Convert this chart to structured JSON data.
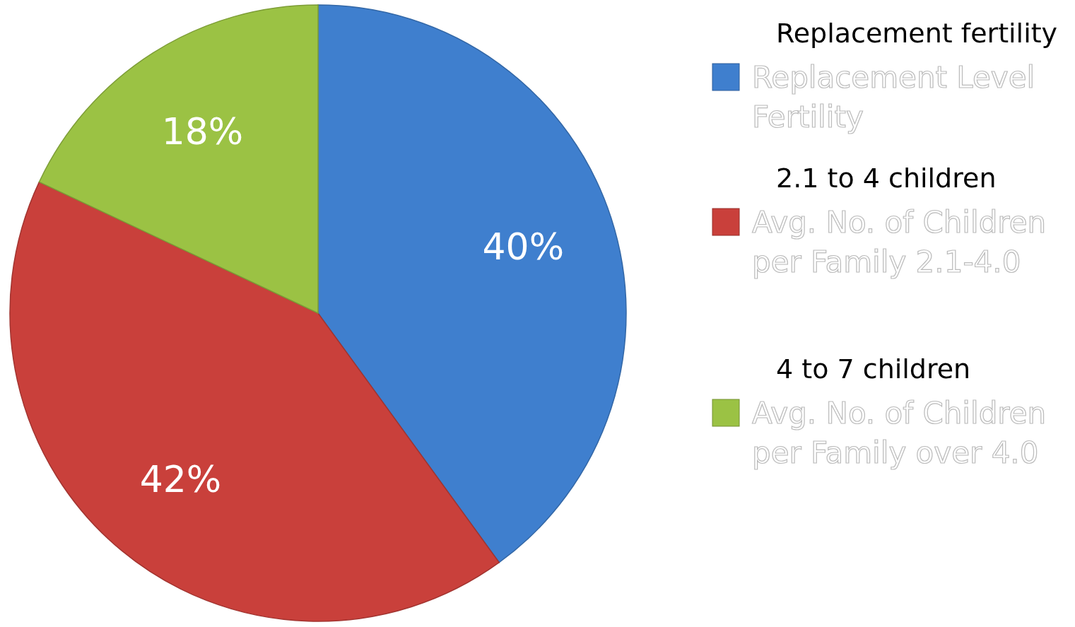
{
  "chart_data": {
    "type": "pie",
    "categories": [
      "Replacement Level Fertility",
      "Avg. No. of Children per Family 2.1-4.0",
      "Avg. No. of Children per Family over 4.0"
    ],
    "values": [
      40,
      42,
      18
    ],
    "colors": [
      "#3f7fce",
      "#c9403b",
      "#9bc244"
    ],
    "value_labels": [
      "40%",
      "42%",
      "18%"
    ],
    "legend": "right",
    "annotations": [
      "Replacement fertility",
      "2.1 to 4 children",
      "4 to 7 children"
    ]
  }
}
